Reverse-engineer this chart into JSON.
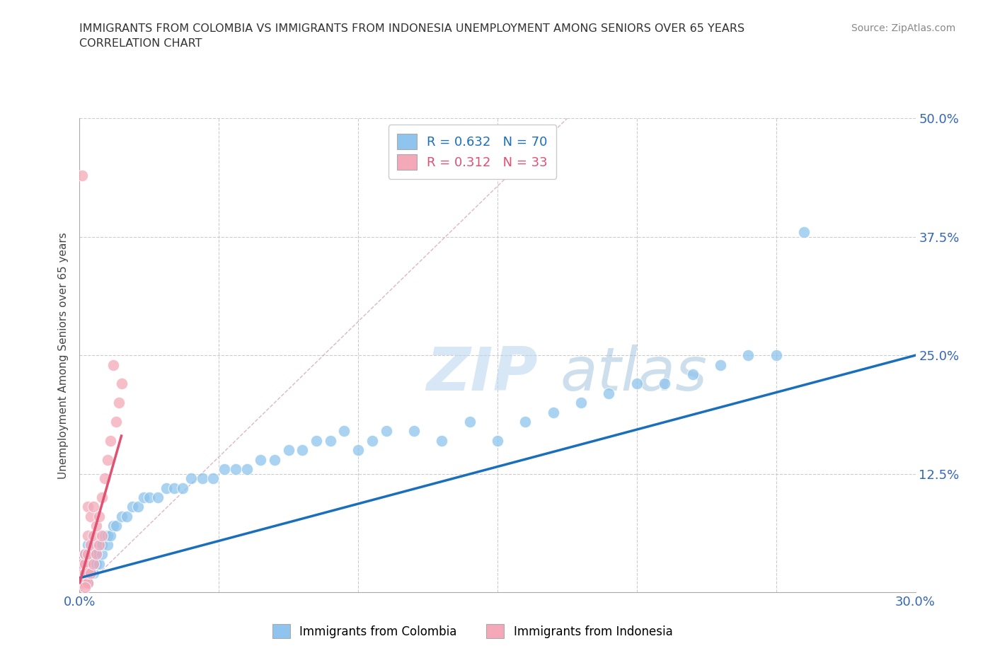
{
  "title_line1": "IMMIGRANTS FROM COLOMBIA VS IMMIGRANTS FROM INDONESIA UNEMPLOYMENT AMONG SENIORS OVER 65 YEARS",
  "title_line2": "CORRELATION CHART",
  "source_text": "Source: ZipAtlas.com",
  "ylabel": "Unemployment Among Seniors over 65 years",
  "xlim": [
    0.0,
    0.3
  ],
  "ylim": [
    0.0,
    0.5
  ],
  "xticks": [
    0.0,
    0.05,
    0.1,
    0.15,
    0.2,
    0.25,
    0.3
  ],
  "yticks": [
    0.0,
    0.125,
    0.25,
    0.375,
    0.5
  ],
  "colombia_color": "#8ec4ed",
  "indonesia_color": "#f4a8b8",
  "colombia_trend_color": "#1a6fbd",
  "indonesia_trend_color": "#e05070",
  "diagonal_color": "#d0b0b8",
  "R_colombia": 0.632,
  "N_colombia": 70,
  "R_indonesia": 0.312,
  "N_indonesia": 33,
  "legend_label_colombia": "Immigrants from Colombia",
  "legend_label_indonesia": "Immigrants from Indonesia",
  "watermark_zip": "ZIP",
  "watermark_atlas": "atlas",
  "colombia_x": [
    0.001,
    0.001,
    0.001,
    0.002,
    0.002,
    0.002,
    0.002,
    0.003,
    0.003,
    0.003,
    0.003,
    0.004,
    0.004,
    0.004,
    0.005,
    0.005,
    0.005,
    0.006,
    0.006,
    0.007,
    0.007,
    0.008,
    0.008,
    0.009,
    0.01,
    0.01,
    0.011,
    0.012,
    0.013,
    0.015,
    0.017,
    0.019,
    0.021,
    0.023,
    0.025,
    0.028,
    0.031,
    0.034,
    0.037,
    0.04,
    0.044,
    0.048,
    0.052,
    0.056,
    0.06,
    0.065,
    0.07,
    0.075,
    0.08,
    0.085,
    0.09,
    0.095,
    0.1,
    0.105,
    0.11,
    0.12,
    0.13,
    0.14,
    0.15,
    0.16,
    0.17,
    0.18,
    0.19,
    0.2,
    0.21,
    0.22,
    0.23,
    0.24,
    0.25,
    0.26
  ],
  "colombia_y": [
    0.01,
    0.02,
    0.03,
    0.01,
    0.02,
    0.03,
    0.04,
    0.01,
    0.02,
    0.03,
    0.05,
    0.02,
    0.03,
    0.04,
    0.02,
    0.03,
    0.04,
    0.03,
    0.04,
    0.03,
    0.05,
    0.04,
    0.05,
    0.06,
    0.05,
    0.06,
    0.06,
    0.07,
    0.07,
    0.08,
    0.08,
    0.09,
    0.09,
    0.1,
    0.1,
    0.1,
    0.11,
    0.11,
    0.11,
    0.12,
    0.12,
    0.12,
    0.13,
    0.13,
    0.13,
    0.14,
    0.14,
    0.15,
    0.15,
    0.16,
    0.16,
    0.17,
    0.15,
    0.16,
    0.17,
    0.17,
    0.16,
    0.18,
    0.16,
    0.18,
    0.19,
    0.2,
    0.21,
    0.22,
    0.22,
    0.23,
    0.24,
    0.25,
    0.25,
    0.38
  ],
  "indonesia_x": [
    0.001,
    0.001,
    0.001,
    0.001,
    0.002,
    0.002,
    0.002,
    0.002,
    0.003,
    0.003,
    0.003,
    0.003,
    0.003,
    0.004,
    0.004,
    0.004,
    0.005,
    0.005,
    0.005,
    0.006,
    0.006,
    0.007,
    0.007,
    0.008,
    0.008,
    0.009,
    0.01,
    0.011,
    0.012,
    0.013,
    0.014,
    0.015,
    0.002
  ],
  "indonesia_y": [
    0.01,
    0.02,
    0.03,
    0.44,
    0.01,
    0.02,
    0.03,
    0.04,
    0.01,
    0.02,
    0.04,
    0.06,
    0.09,
    0.02,
    0.05,
    0.08,
    0.03,
    0.06,
    0.09,
    0.04,
    0.07,
    0.05,
    0.08,
    0.06,
    0.1,
    0.12,
    0.14,
    0.16,
    0.24,
    0.18,
    0.2,
    0.22,
    0.005
  ]
}
